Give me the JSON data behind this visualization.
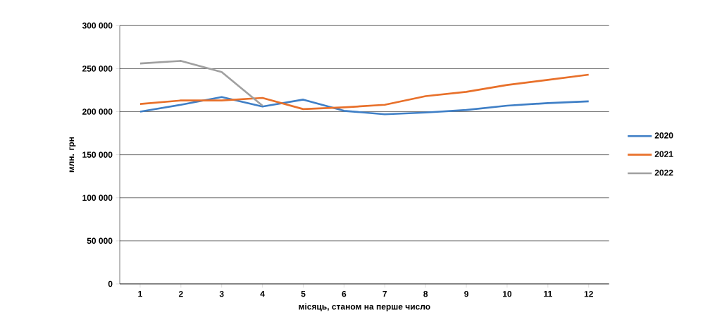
{
  "chart_data": {
    "type": "line",
    "xlabel": "місяць, станом на перше число",
    "ylabel": "млн. грн",
    "categories": [
      "1",
      "2",
      "3",
      "4",
      "5",
      "6",
      "7",
      "8",
      "9",
      "10",
      "11",
      "12"
    ],
    "series": [
      {
        "name": "2020",
        "color": "#3f7fc6",
        "values": [
          200000,
          208000,
          217000,
          206000,
          214000,
          201000,
          197000,
          199000,
          202000,
          207000,
          210000,
          212000
        ]
      },
      {
        "name": "2021",
        "color": "#e8702a",
        "values": [
          209000,
          213000,
          213000,
          216000,
          203000,
          205000,
          208000,
          218000,
          223000,
          231000,
          237000,
          243000
        ]
      },
      {
        "name": "2022",
        "color": "#a0a0a0",
        "values": [
          256000,
          259000,
          246000,
          207000,
          null,
          null,
          null,
          null,
          null,
          null,
          null,
          null
        ]
      }
    ],
    "ylim": [
      0,
      300000
    ],
    "yticks": [
      {
        "value": 0,
        "label": "0"
      },
      {
        "value": 50000,
        "label": "50 000"
      },
      {
        "value": 100000,
        "label": "100 000"
      },
      {
        "value": 150000,
        "label": "150 000"
      },
      {
        "value": 200000,
        "label": "200 000"
      },
      {
        "value": 250000,
        "label": "250 000"
      },
      {
        "value": 300000,
        "label": "300 000"
      }
    ],
    "grid": "y",
    "legend": "right",
    "marker": "none",
    "line_style": "solid"
  }
}
